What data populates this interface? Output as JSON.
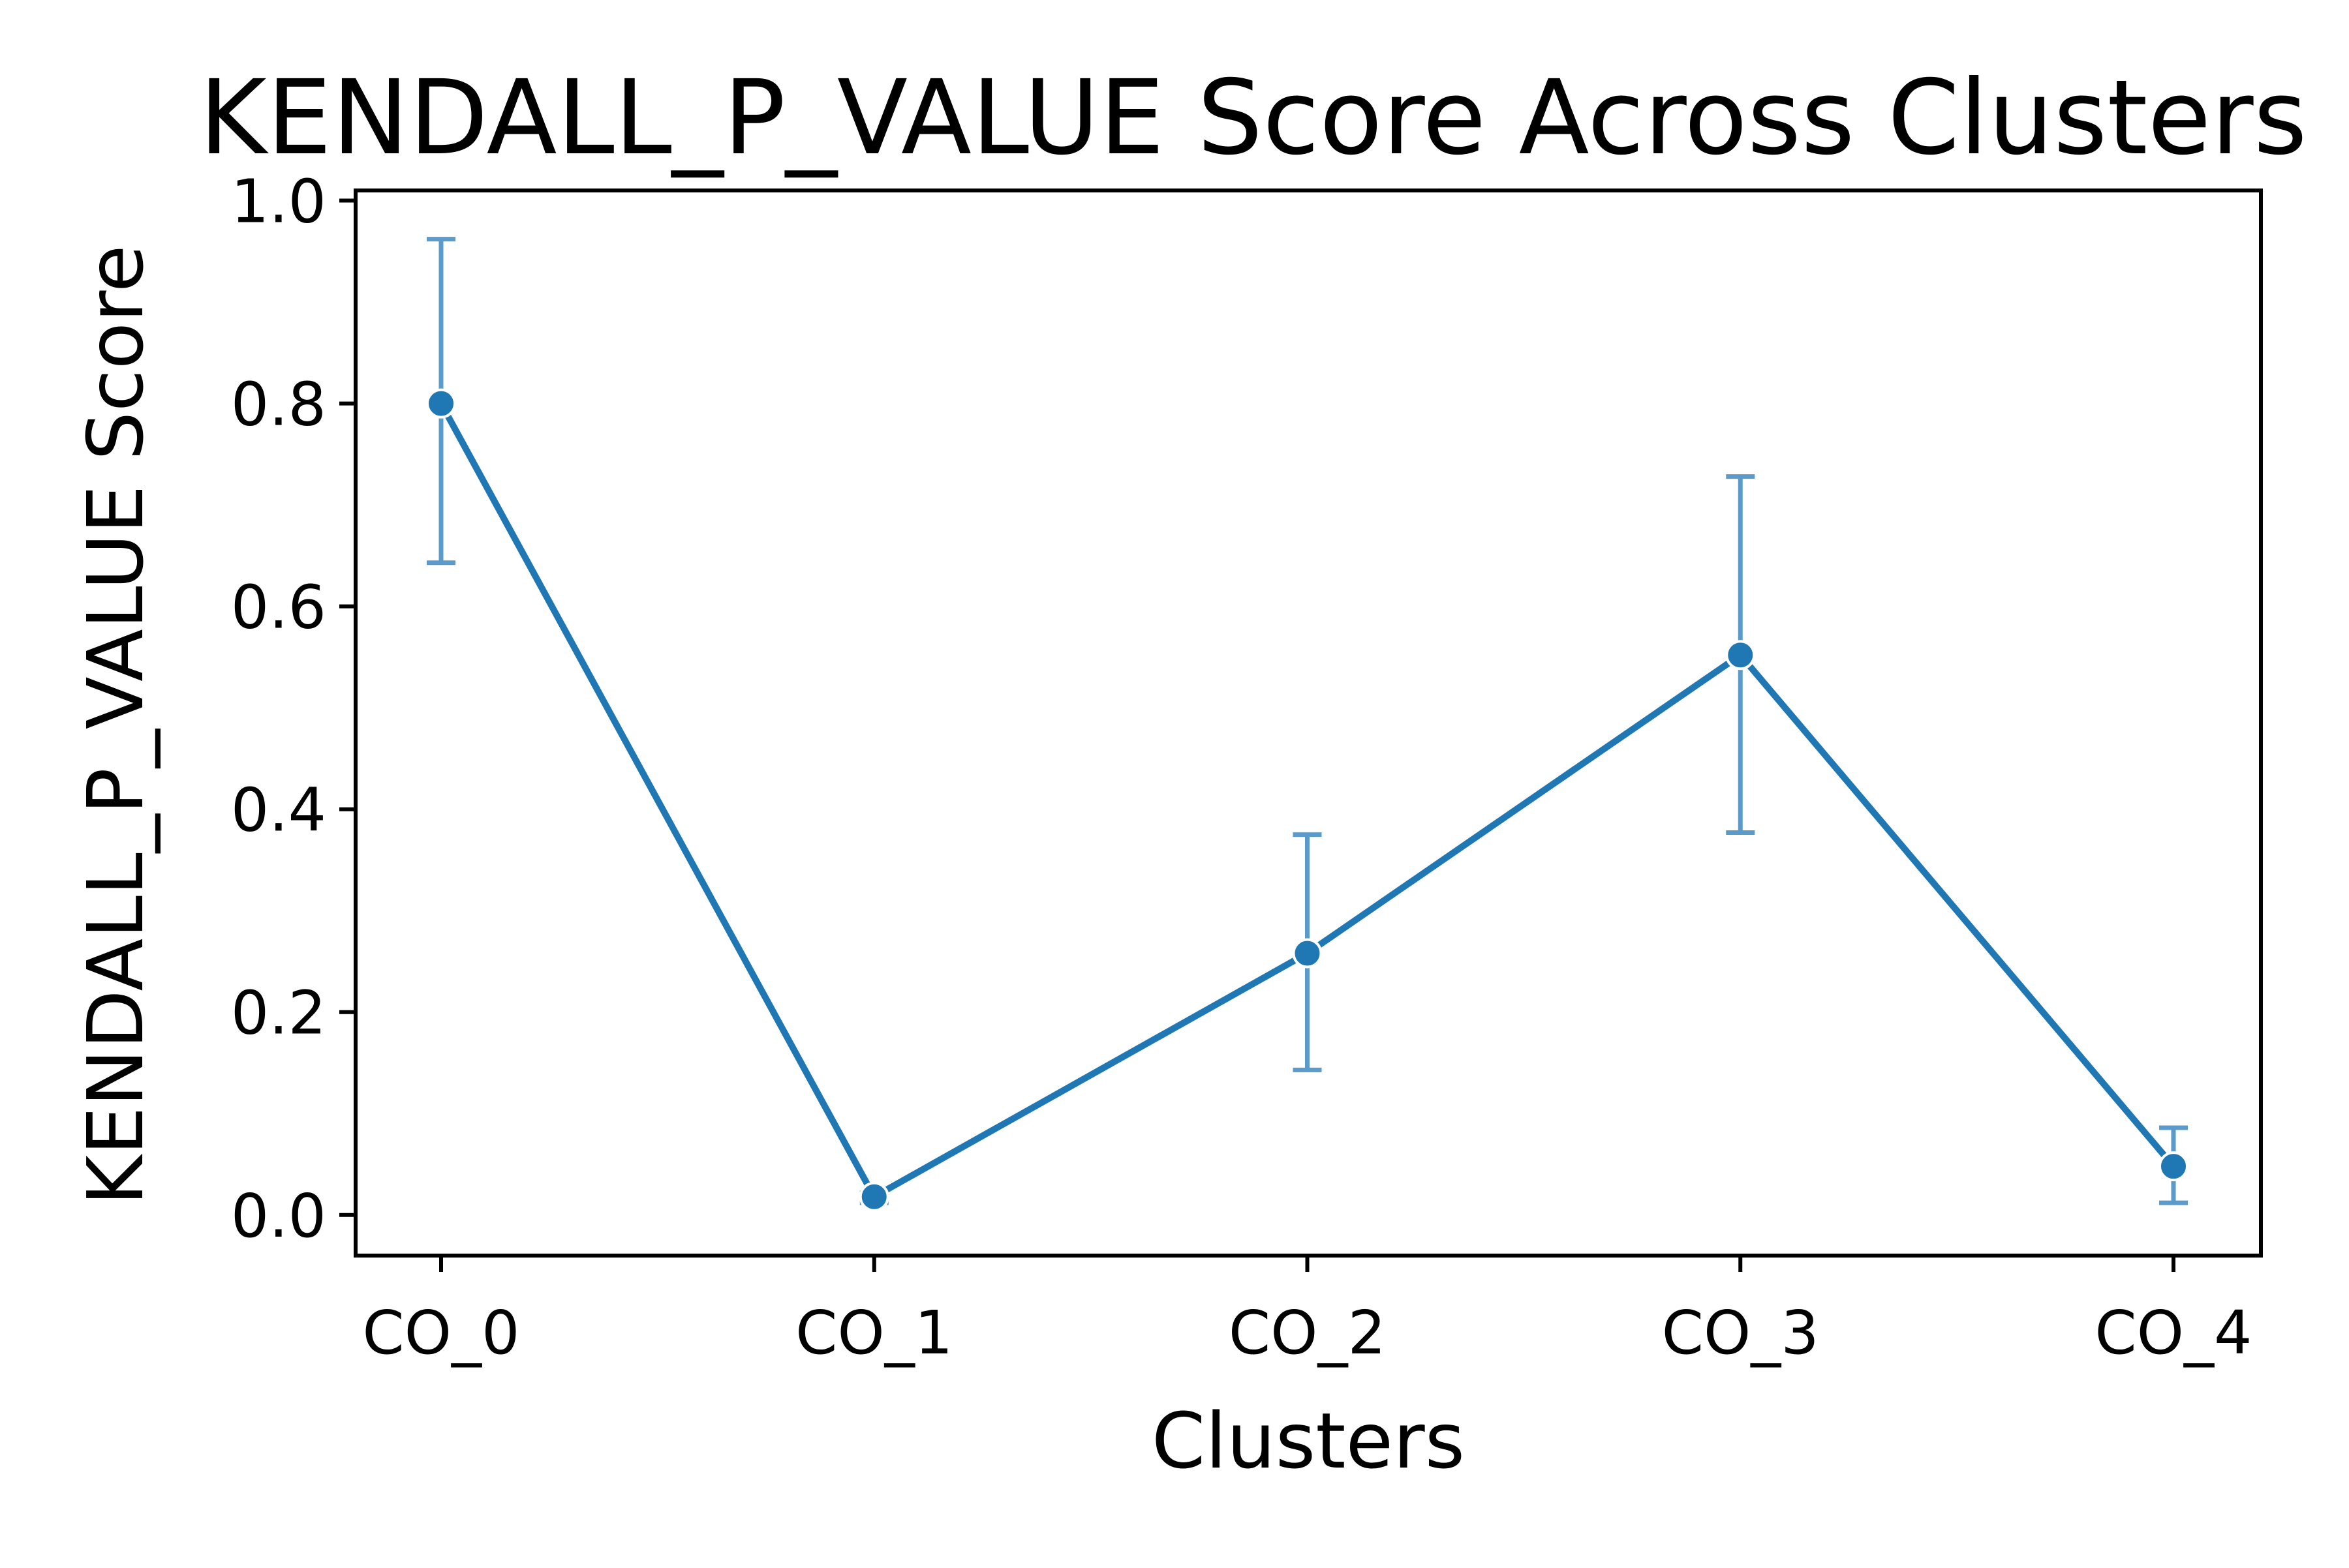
{
  "chart_data": {
    "type": "line",
    "title": "KENDALL_P_VALUE Score Across Clusters",
    "xlabel": "Clusters",
    "ylabel": "KENDALL_P_VALUE Score",
    "categories": [
      "CO_0",
      "CO_1",
      "CO_2",
      "CO_3",
      "CO_4"
    ],
    "series": [
      {
        "values": [
          0.8,
          0.018,
          0.258,
          0.552,
          0.048
        ],
        "error_low": [
          0.643,
          0.012,
          0.143,
          0.377,
          0.012
        ],
        "error_high": [
          0.962,
          0.022,
          0.375,
          0.728,
          0.086
        ],
        "color": "#1f77b4",
        "error_color": "#5b9bcb"
      }
    ],
    "ylim": [
      -0.04,
      1.01
    ],
    "yticks": [
      "0.0",
      "0.2",
      "0.4",
      "0.6",
      "0.8",
      "1.0"
    ],
    "ytick_values": [
      0.0,
      0.2,
      0.4,
      0.6,
      0.8,
      1.0
    ],
    "grid": false,
    "legend": "none"
  }
}
